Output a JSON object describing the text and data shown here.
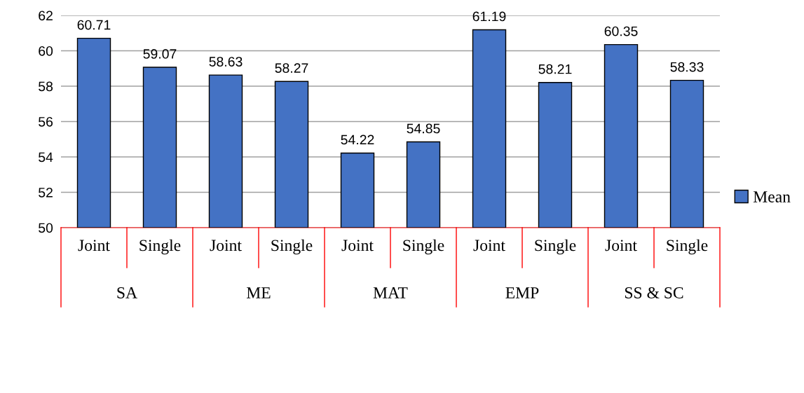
{
  "chart_data": {
    "type": "bar",
    "categories": [
      "Joint",
      "Single",
      "Joint",
      "Single",
      "Joint",
      "Single",
      "Joint",
      "Single",
      "Joint",
      "Single"
    ],
    "series": [
      {
        "name": "Mean",
        "color": "#4472c4",
        "values": [
          60.71,
          59.07,
          58.63,
          58.27,
          54.22,
          54.85,
          61.19,
          58.21,
          60.35,
          58.33
        ]
      }
    ],
    "annotations": [
      "SA",
      "ME",
      "MAT",
      "EMP",
      "SS & SC"
    ],
    "ylim": [
      50,
      62
    ],
    "yticks": [
      50,
      52,
      54,
      56,
      58,
      60,
      62
    ],
    "grid": "y",
    "legend": "right",
    "data_labels": true
  }
}
